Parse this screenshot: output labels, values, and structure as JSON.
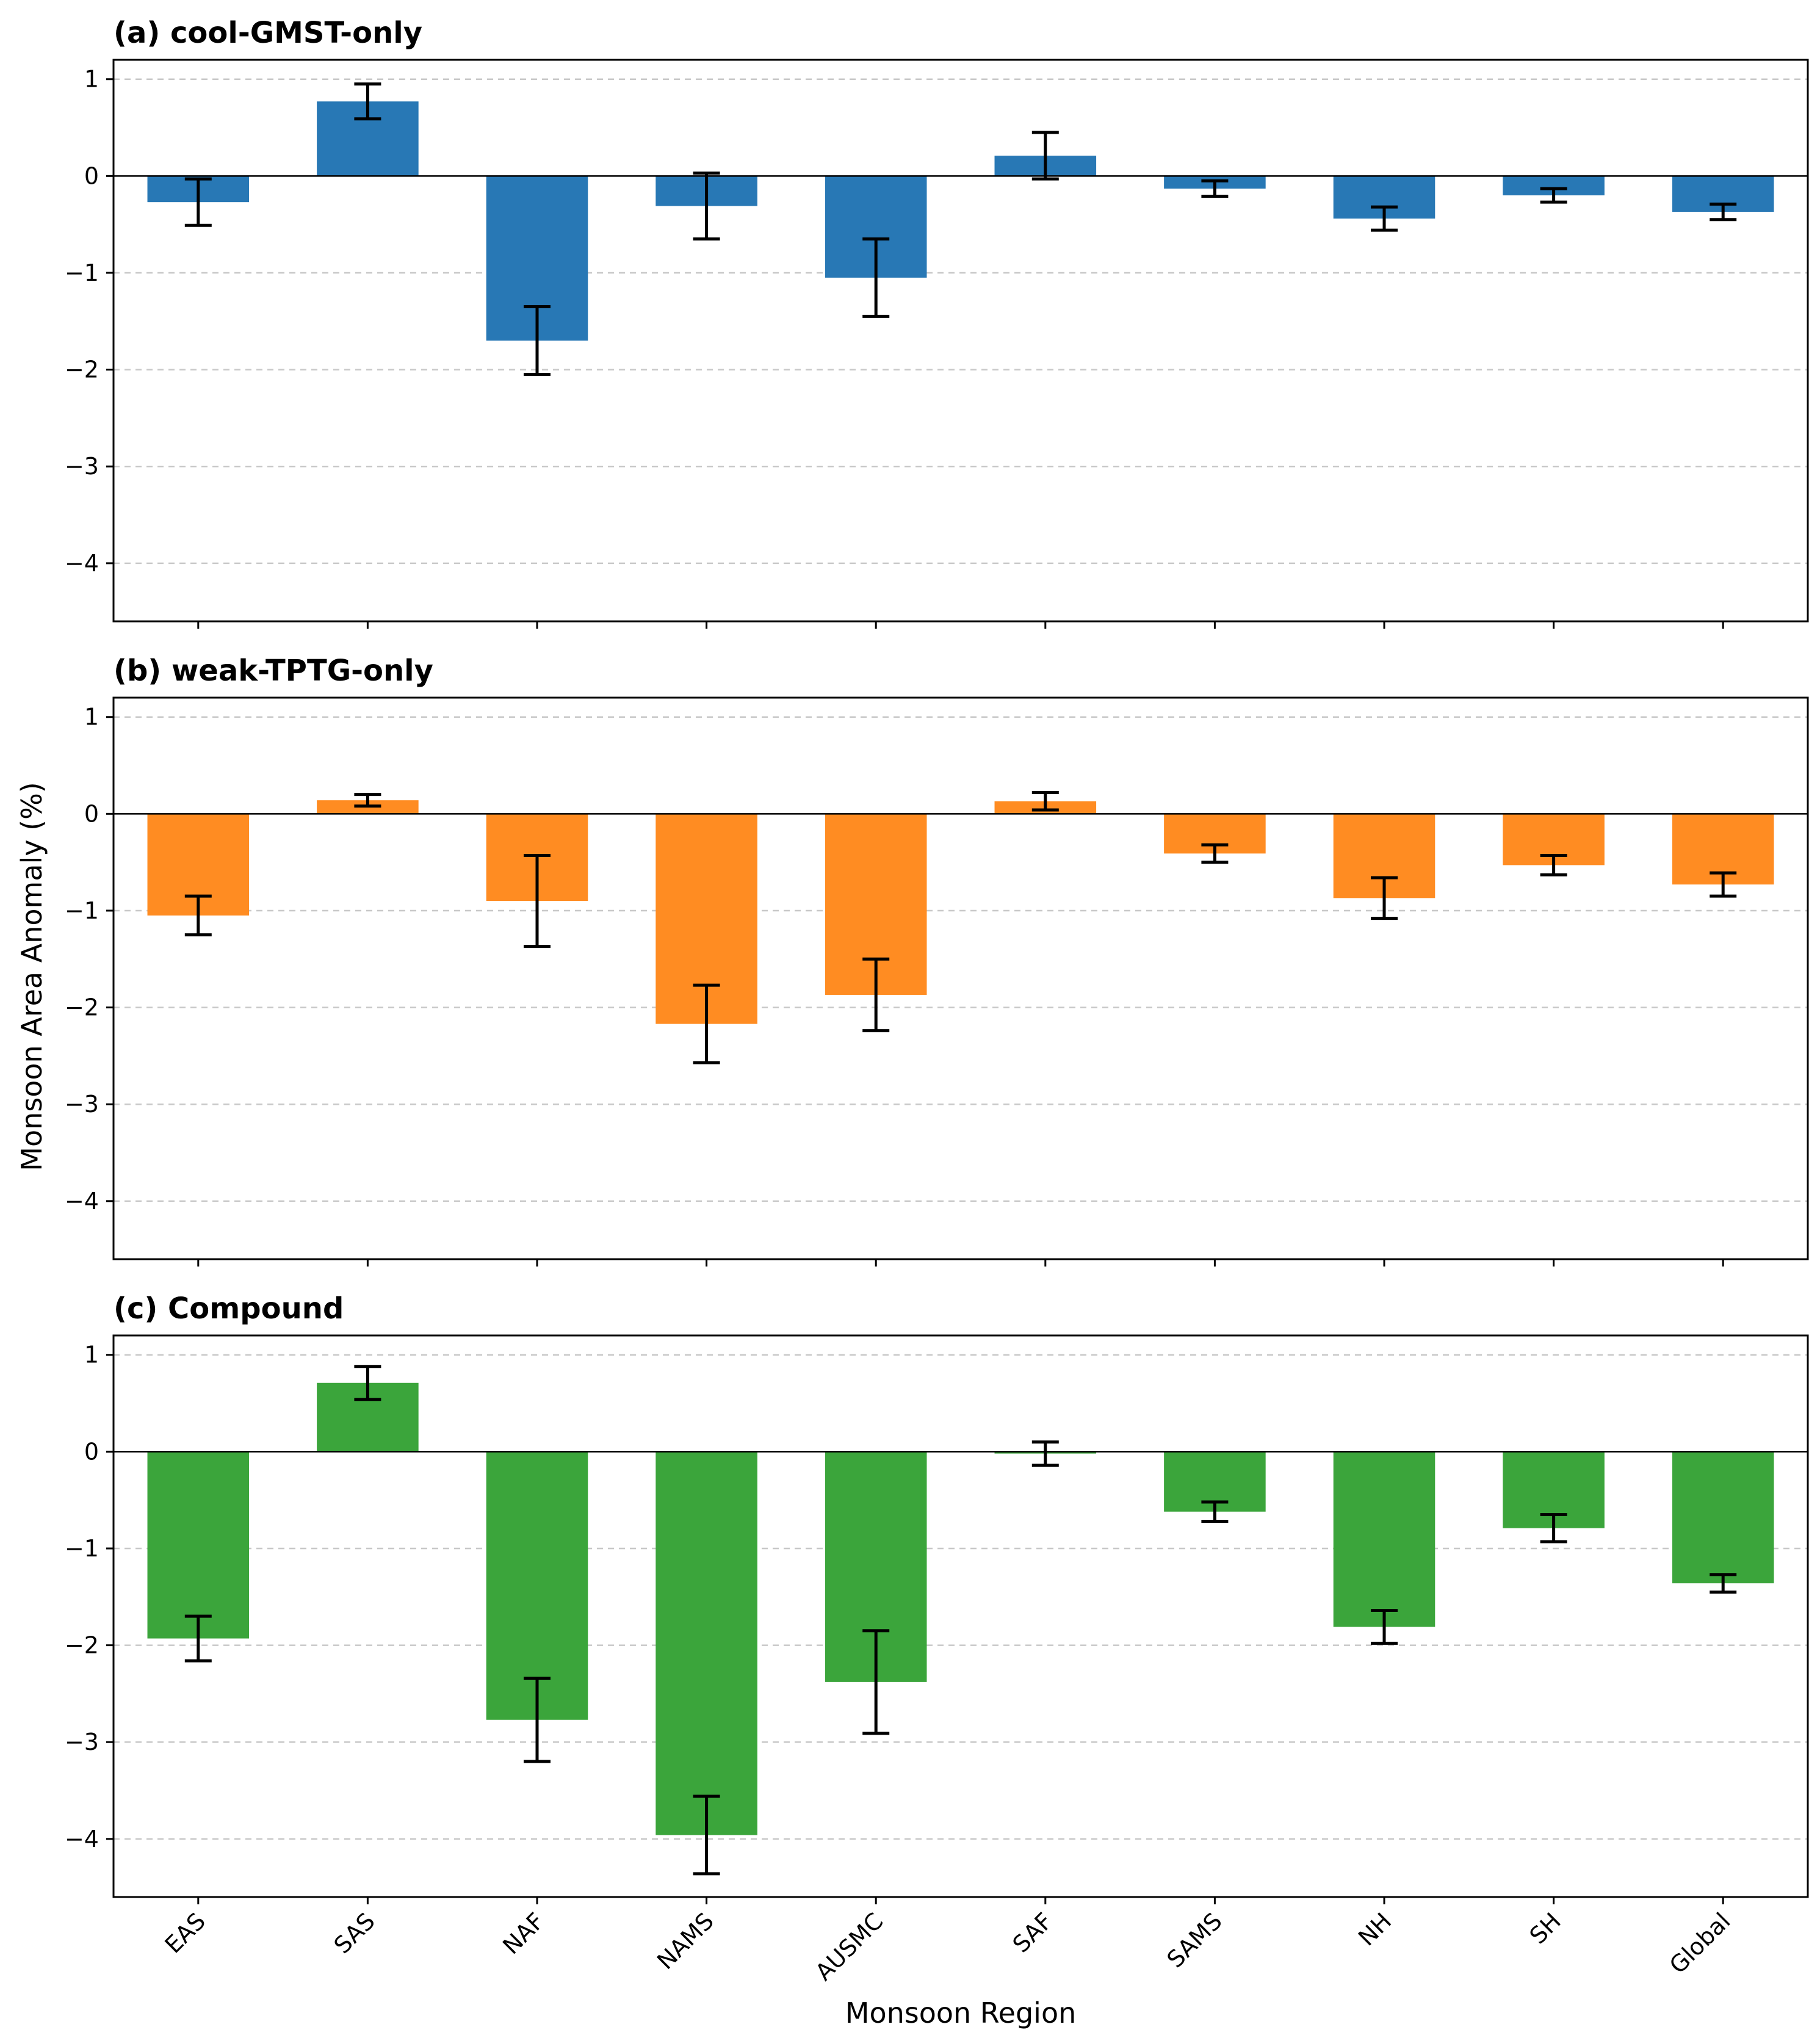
{
  "chart_data": [
    {
      "type": "bar",
      "title": "(a) cool-GMST-only",
      "color": "#2878b5",
      "categories": [
        "EAS",
        "SAS",
        "NAF",
        "NAMS",
        "AUSMC",
        "SAF",
        "SAMS",
        "NH",
        "SH",
        "Global"
      ],
      "values": [
        -0.27,
        0.77,
        -1.7,
        -0.31,
        -1.05,
        0.21,
        -0.13,
        -0.44,
        -0.2,
        -0.37
      ],
      "errors": [
        0.24,
        0.18,
        0.35,
        0.34,
        0.4,
        0.24,
        0.08,
        0.12,
        0.07,
        0.08
      ],
      "ylim": [
        -4.6,
        1.2
      ],
      "yticks": [
        1,
        0,
        -1,
        -2,
        -3,
        -4
      ],
      "ytick_labels": [
        "1",
        "0",
        "−1",
        "−2",
        "−3",
        "−4"
      ],
      "grid": true
    },
    {
      "type": "bar",
      "title": "(b) weak-TPTG-only",
      "color": "#ff8c22",
      "categories": [
        "EAS",
        "SAS",
        "NAF",
        "NAMS",
        "AUSMC",
        "SAF",
        "SAMS",
        "NH",
        "SH",
        "Global"
      ],
      "values": [
        -1.05,
        0.14,
        -0.9,
        -2.17,
        -1.87,
        0.13,
        -0.41,
        -0.87,
        -0.53,
        -0.73
      ],
      "errors": [
        0.2,
        0.06,
        0.47,
        0.4,
        0.37,
        0.09,
        0.09,
        0.21,
        0.1,
        0.12
      ],
      "ylim": [
        -4.6,
        1.2
      ],
      "yticks": [
        1,
        0,
        -1,
        -2,
        -3,
        -4
      ],
      "ytick_labels": [
        "1",
        "0",
        "−1",
        "−2",
        "−3",
        "−4"
      ],
      "grid": true
    },
    {
      "type": "bar",
      "title": "(c) Compound",
      "color": "#3ba53b",
      "categories": [
        "EAS",
        "SAS",
        "NAF",
        "NAMS",
        "AUSMC",
        "SAF",
        "SAMS",
        "NH",
        "SH",
        "Global"
      ],
      "values": [
        -1.93,
        0.71,
        -2.77,
        -3.96,
        -2.38,
        -0.02,
        -0.62,
        -1.81,
        -0.79,
        -1.36
      ],
      "errors": [
        0.23,
        0.17,
        0.43,
        0.4,
        0.53,
        0.12,
        0.1,
        0.17,
        0.14,
        0.09
      ],
      "ylim": [
        -4.6,
        1.2
      ],
      "yticks": [
        1,
        0,
        -1,
        -2,
        -3,
        -4
      ],
      "ytick_labels": [
        "1",
        "0",
        "−1",
        "−2",
        "−3",
        "−4"
      ],
      "grid": true
    }
  ],
  "labels": {
    "ylabel": "Monsoon Area Anomaly (%)",
    "xlabel": "Monsoon Region"
  }
}
